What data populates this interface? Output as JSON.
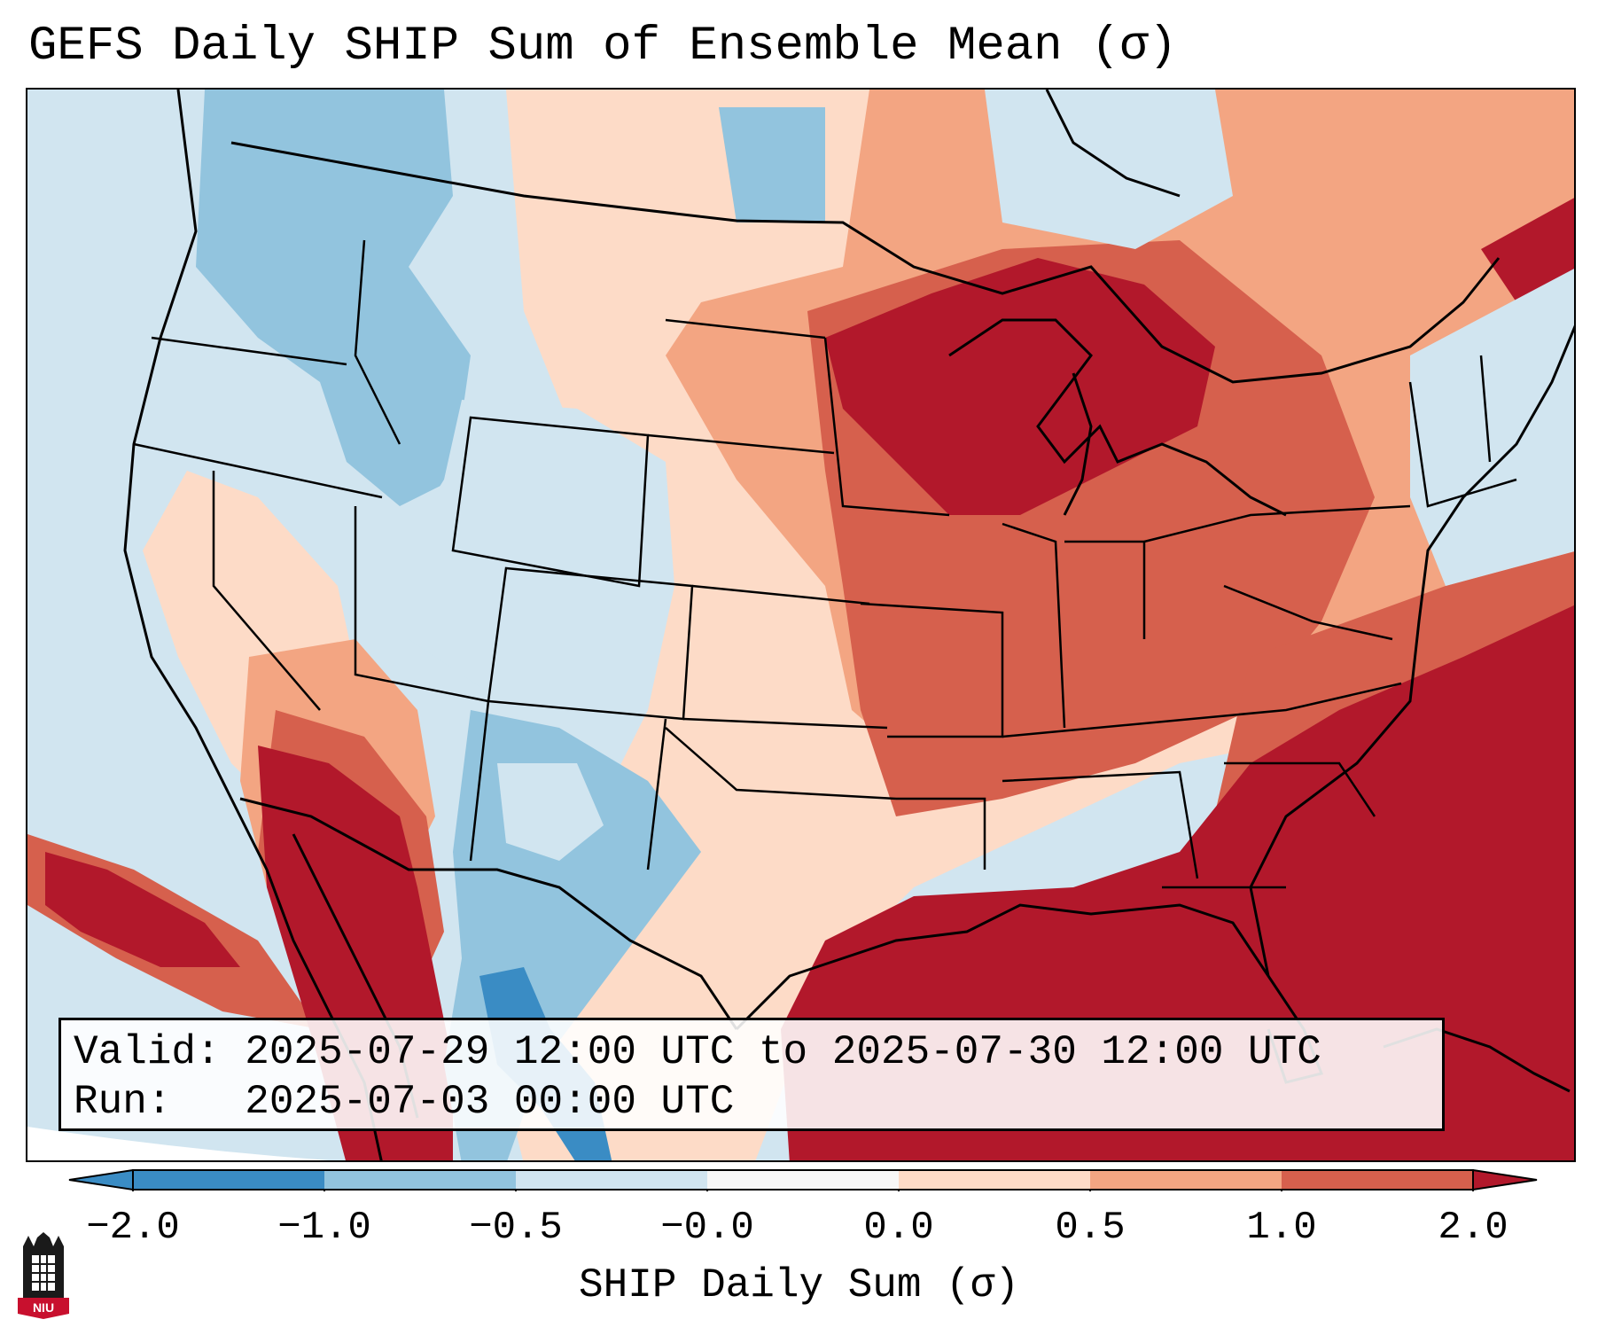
{
  "title": "GEFS Daily SHIP Sum of Ensemble Mean (σ)",
  "info": {
    "valid_label": "Valid:",
    "valid_value": "2025-07-29 12:00 UTC to 2025-07-30 12:00 UTC",
    "run_label": "Run:",
    "run_value": "2025-07-03 00:00 UTC"
  },
  "colorbar": {
    "label": "SHIP Daily Sum (σ)",
    "ticks": [
      "−2.0",
      "−1.0",
      "−0.5",
      "−0.0",
      "0.0",
      "0.5",
      "1.0",
      "2.0"
    ],
    "colors": [
      "#3a8cc4",
      "#92c4de",
      "#d1e5f0",
      "#f7f7f7",
      "#fddbc7",
      "#f3a582",
      "#d6604d",
      "#b2182b"
    ],
    "extend": "both"
  },
  "map": {
    "region": "CONUS",
    "ocean_color": "#d1e5f0",
    "hot_color": "#b2182b",
    "warm_color": "#d6604d",
    "mild_color": "#f3a582",
    "light_warm_color": "#fddbc7",
    "light_cool_color": "#d1e5f0",
    "cool_color": "#92c4de",
    "cold_color": "#3a8cc4"
  },
  "logo": {
    "name": "niu-logo",
    "text": "NIU"
  }
}
